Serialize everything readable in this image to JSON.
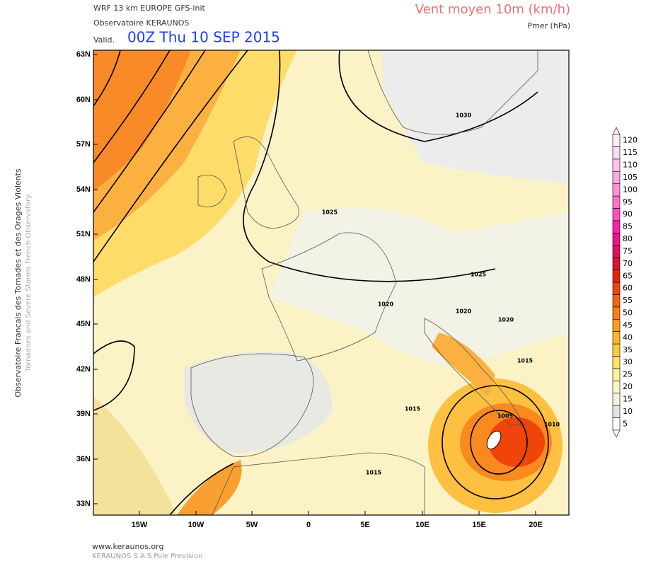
{
  "header": {
    "model": "WRF 13 km EUROPE  GFS-init",
    "org": "Observatoire KERAUNOS",
    "valid_label": "Valid.",
    "valid_time": "00Z Thu 10 SEP 2015",
    "field": "Vent moyen 10m (km/h)",
    "contour": "Pmer (hPa)"
  },
  "side": {
    "fr": "Observatoire Francais des Tornades et des Orages Violents",
    "en": "Tornadoes and Severe Storms French Observatory"
  },
  "axes": {
    "lat_labels": [
      "63N",
      "60N",
      "57N",
      "54N",
      "51N",
      "48N",
      "45N",
      "42N",
      "39N",
      "36N",
      "33N"
    ],
    "lon_labels": [
      "15W",
      "10W",
      "5W",
      "0",
      "5E",
      "10E",
      "15E",
      "20E"
    ]
  },
  "isobar_labels": [
    "1030",
    "1025",
    "1025",
    "1020",
    "1020",
    "1020",
    "1015",
    "1015",
    "1005",
    "1010",
    "1015"
  ],
  "colorbar": {
    "levels": [
      {
        "value": 5,
        "color": "#ffffff"
      },
      {
        "value": 10,
        "color": "#e4e4e4"
      },
      {
        "value": 15,
        "color": "#f3f3e0"
      },
      {
        "value": 20,
        "color": "#fbf5c8"
      },
      {
        "value": 25,
        "color": "#fdf09a"
      },
      {
        "value": 30,
        "color": "#ffe45a"
      },
      {
        "value": 35,
        "color": "#ffcc33"
      },
      {
        "value": 40,
        "color": "#ffb42a"
      },
      {
        "value": 45,
        "color": "#fd9a20"
      },
      {
        "value": 50,
        "color": "#fa7f18"
      },
      {
        "value": 55,
        "color": "#f66410"
      },
      {
        "value": 60,
        "color": "#f0440a"
      },
      {
        "value": 65,
        "color": "#e82008"
      },
      {
        "value": 70,
        "color": "#e01030"
      },
      {
        "value": 75,
        "color": "#e01060"
      },
      {
        "value": 80,
        "color": "#f01090"
      },
      {
        "value": 85,
        "color": "#ff20b0"
      },
      {
        "value": 90,
        "color": "#ff50c0"
      },
      {
        "value": 95,
        "color": "#ff70cc"
      },
      {
        "value": 100,
        "color": "#ff90d8"
      },
      {
        "value": 105,
        "color": "#ffaae0"
      },
      {
        "value": 110,
        "color": "#ffc4ea"
      },
      {
        "value": 115,
        "color": "#ffdaf2"
      },
      {
        "value": 120,
        "color": "#ffeefa"
      }
    ]
  },
  "footer": {
    "site": "www.keraunos.org",
    "company": "KERAUNOS S.A.S Pole Prevision"
  }
}
